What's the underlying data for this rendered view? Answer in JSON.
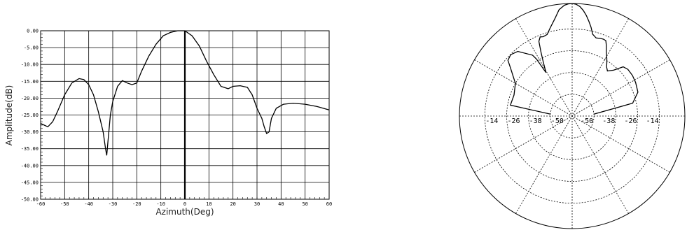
{
  "chart_data": [
    {
      "type": "line",
      "xlabel": "Azimuth(Deg)",
      "ylabel": "Amplitude(dB)",
      "xlim": [
        -60,
        60
      ],
      "ylim": [
        -50,
        0
      ],
      "grid": true,
      "x_ticks": [
        "-60",
        "-50",
        "-40",
        "-30",
        "-20",
        "-10",
        "0",
        "10",
        "20",
        "30",
        "40",
        "50",
        "60"
      ],
      "y_ticks": [
        "0.00",
        "-5.00",
        "-10.00",
        "-15.00",
        "-20.00",
        "-25.00",
        "-30.00",
        "-35.00",
        "-40.00",
        "-45.00",
        "-50.00"
      ],
      "x": [
        -60,
        -57,
        -55,
        -53,
        -50,
        -47,
        -44,
        -42,
        -40,
        -38,
        -36,
        -34,
        -33,
        -32.5,
        -32,
        -31,
        -30,
        -28,
        -26,
        -24,
        -22,
        -20,
        -18,
        -15,
        -12,
        -9,
        -6,
        -3,
        0,
        3,
        6,
        9,
        12,
        15,
        18,
        20,
        23,
        26,
        28,
        30,
        32,
        33,
        34,
        35,
        36,
        38,
        41,
        45,
        50,
        55,
        60
      ],
      "y": [
        -27.5,
        -28.5,
        -27,
        -24,
        -19,
        -15.5,
        -14.2,
        -14.5,
        -16,
        -19,
        -24,
        -30,
        -35,
        -37,
        -33,
        -25,
        -21,
        -16.5,
        -14.8,
        -15.5,
        -16,
        -15.5,
        -12,
        -7.5,
        -4,
        -1.5,
        -0.5,
        0,
        0,
        -1.5,
        -4.5,
        -9,
        -13,
        -16.5,
        -17.2,
        -16.5,
        -16.3,
        -16.8,
        -19,
        -23,
        -26,
        -28.5,
        -30.5,
        -30,
        -26,
        -23,
        -21.8,
        -21.5,
        -21.8,
        -22.5,
        -23.5
      ]
    },
    {
      "type": "line",
      "polar": true,
      "r_tick_labels": [
        "-14",
        "-26",
        "-38",
        "-50",
        "-50",
        "-38",
        "-26",
        "-14"
      ],
      "r_levels": [
        -14,
        -26,
        -38,
        -50
      ],
      "grid": true,
      "theta_deg": [
        -85,
        -80,
        -70,
        -60,
        -52,
        -49,
        -45,
        -40,
        -33,
        -32,
        -31,
        -28,
        -26,
        -24,
        -22,
        -20,
        -17,
        -14,
        -10,
        -7,
        -4,
        -2,
        0,
        2,
        4,
        6,
        8,
        10,
        12,
        14,
        17,
        20,
        22,
        24,
        26,
        28,
        31,
        33,
        35,
        38,
        42,
        46,
        50,
        56,
        62,
        70,
        78,
        85
      ],
      "r_dB": [
        -50,
        -27.5,
        -28,
        -26,
        -19,
        -15.2,
        -14.2,
        -15.5,
        -22,
        -25,
        -34,
        -28,
        -23,
        -17,
        -15,
        -15.5,
        -15,
        -12,
        -7.5,
        -3,
        -0.8,
        -0.2,
        0,
        -0.4,
        -1.5,
        -3.5,
        -6,
        -9,
        -12,
        -15.5,
        -17,
        -16.5,
        -16.3,
        -16.5,
        -19,
        -22,
        -25,
        -27,
        -29,
        -30.5,
        -28,
        -23,
        -22,
        -22,
        -22.5,
        -23.5,
        -28,
        -50
      ]
    }
  ]
}
